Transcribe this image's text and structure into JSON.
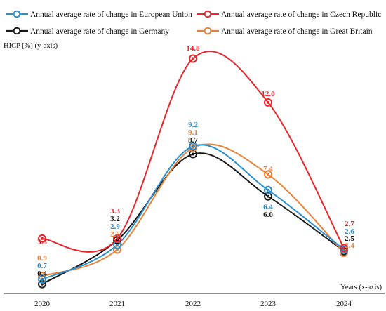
{
  "chart_data": {
    "type": "line",
    "title": "",
    "ylabel": "HICP [%] (y-axis)",
    "xlabel": "Years (x-axis)",
    "x": [
      "2020",
      "2021",
      "2022",
      "2023",
      "2024"
    ],
    "ylim": [
      0,
      16
    ],
    "grid": false,
    "legend": "top, two columns",
    "series": [
      {
        "name": "Annual average rate of change in European Union",
        "color": "#2a8fd0",
        "values": [
          0.7,
          2.9,
          9.2,
          6.4,
          2.6
        ],
        "labels": [
          "0.7",
          "2.9",
          "9.2",
          "6.4",
          "2.6"
        ]
      },
      {
        "name": "Annual average rate of change in Czech Republic",
        "color": "#e8262b",
        "values": [
          3.3,
          3.3,
          14.8,
          12.0,
          2.7
        ],
        "labels": [
          "3.3",
          "3.3",
          "14.8",
          "12.0",
          "2.7"
        ]
      },
      {
        "name": "Annual average rate of change in Germany",
        "color": "#1a1a1a",
        "values": [
          0.4,
          3.2,
          8.7,
          6.0,
          2.5
        ],
        "labels": [
          "0.4",
          "3.2",
          "8.7",
          "6.0",
          "2.5"
        ]
      },
      {
        "name": "Annual average rate of change in Great Britain",
        "color": "#e8823a",
        "values": [
          0.9,
          2.6,
          9.1,
          7.4,
          2.4
        ],
        "labels": [
          "0.9",
          "2.6",
          "9.1",
          "7.4",
          "2.4"
        ]
      }
    ]
  }
}
